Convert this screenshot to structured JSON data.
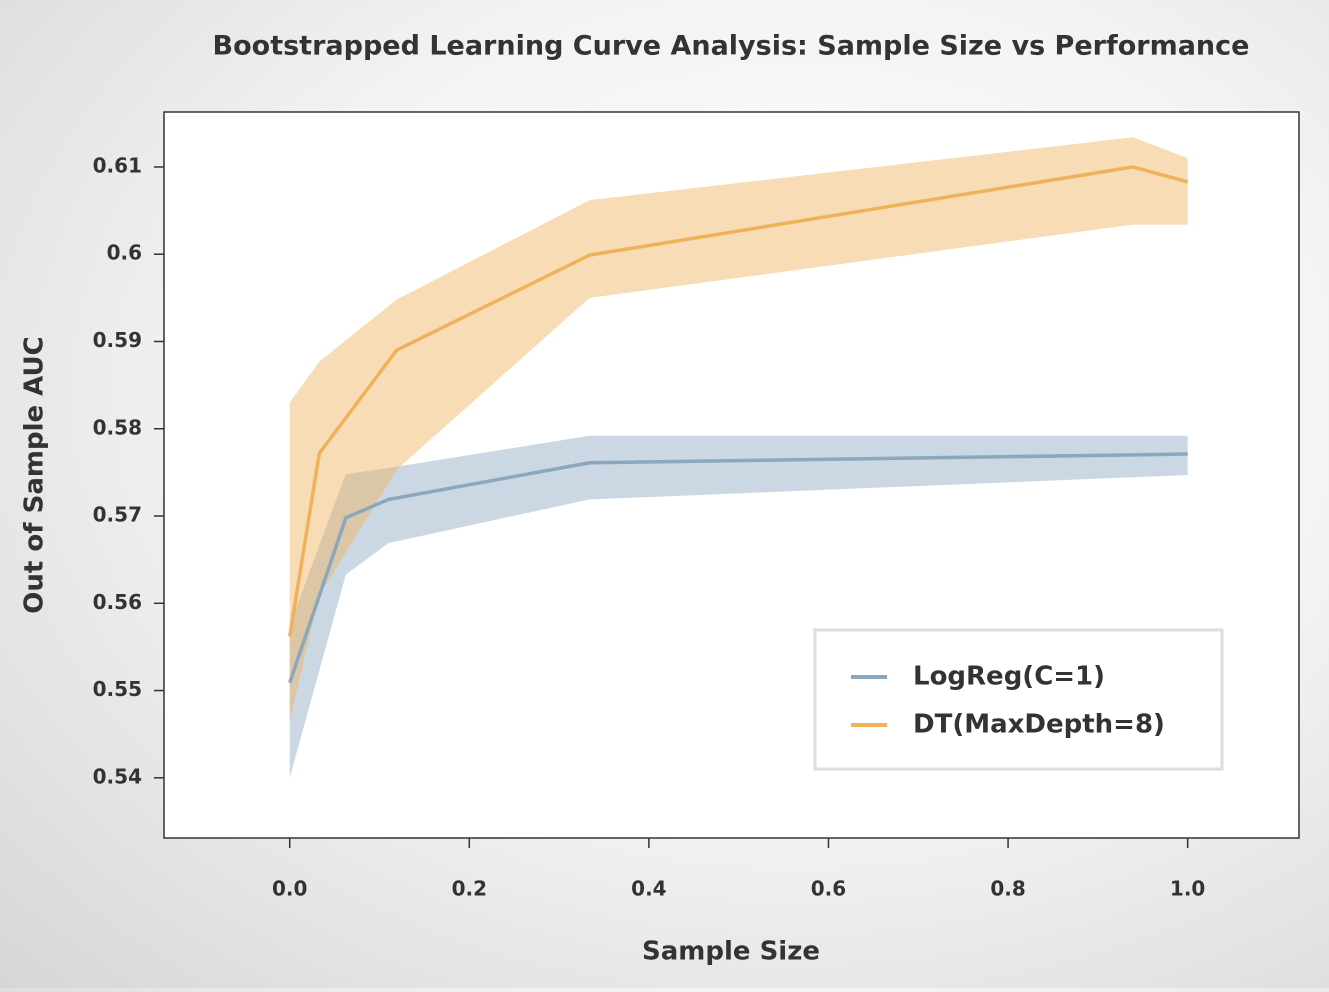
{
  "chart_data": {
    "type": "line",
    "title": "Bootstrapped Learning Curve Analysis: Sample Size vs Performance",
    "x_label": "Sample Size",
    "y_label": "Out of Sample AUC",
    "xlim": [
      -0.14,
      1.124
    ],
    "ylim": [
      0.5331,
      0.6163
    ],
    "xticks": [
      {
        "value": 0,
        "label": "0.0"
      },
      0.2,
      0.4,
      0.6,
      0.8,
      {
        "value": 1,
        "label": "1.0"
      }
    ],
    "yticks": [
      0.54,
      0.55,
      0.56,
      0.57,
      0.58,
      0.59,
      0.6,
      0.61
    ],
    "legend": "lower right",
    "series": [
      {
        "name": "LogReg(C=1)",
        "color": "#8ba7be",
        "x": [
          0,
          0.0625,
          0.11,
          0.334,
          1.0
        ],
        "values": [
          0.5509,
          0.5698,
          0.5719,
          0.5761,
          0.5771
        ],
        "lower": [
          0.54,
          0.5633,
          0.5669,
          0.5719,
          0.5747
        ],
        "upper": [
          0.5575,
          0.5748,
          0.5755,
          0.5792,
          0.5792
        ]
      },
      {
        "name": "DT(MaxDepth=8)",
        "color": "#efb25a",
        "x": [
          0,
          0.033,
          0.119,
          0.334,
          0.939,
          1.0
        ],
        "values": [
          0.5562,
          0.5772,
          0.589,
          0.5999,
          0.61,
          0.6083
        ],
        "lower": [
          0.5466,
          0.5609,
          0.5753,
          0.595,
          0.6034,
          0.6034
        ],
        "upper": [
          0.583,
          0.5877,
          0.5948,
          0.6062,
          0.6134,
          0.611
        ]
      }
    ]
  }
}
